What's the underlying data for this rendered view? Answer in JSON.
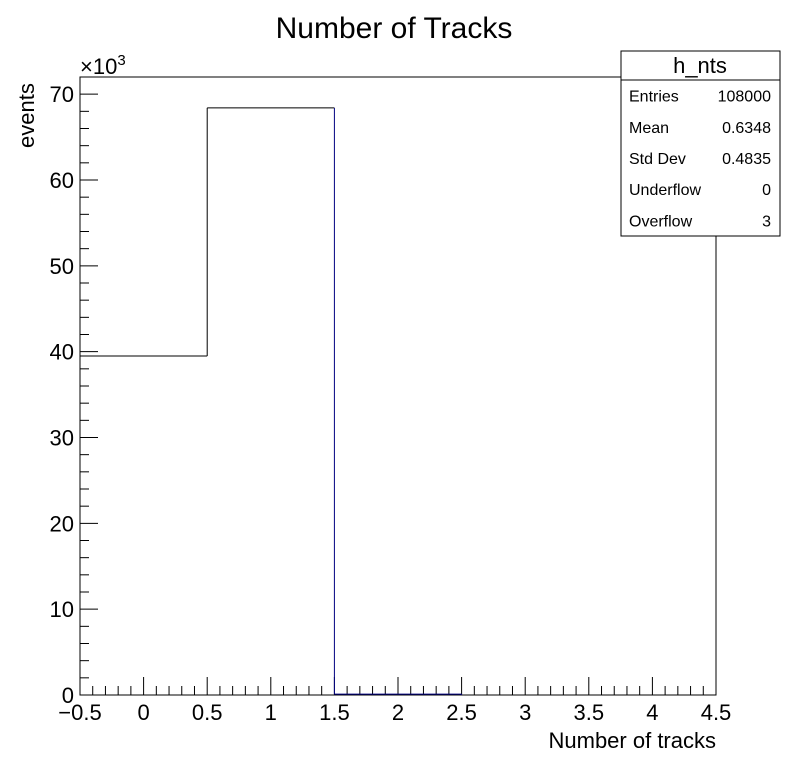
{
  "chart_data": {
    "type": "bar",
    "title": "Number of Tracks",
    "xlabel": "Number of tracks",
    "ylabel": "events",
    "y_multiplier": {
      "base": "×10",
      "exponent": "3"
    },
    "xlim": [
      -0.5,
      4.5
    ],
    "ylim": [
      0,
      72
    ],
    "x_ticks": [
      -0.5,
      0,
      0.5,
      1,
      1.5,
      2,
      2.5,
      3,
      3.5,
      4,
      4.5
    ],
    "x_tick_labels": [
      "−0.5",
      "0",
      "0.5",
      "1",
      "1.5",
      "2",
      "2.5",
      "3",
      "3.5",
      "4",
      "4.5"
    ],
    "y_ticks": [
      0,
      10,
      20,
      30,
      40,
      50,
      60,
      70
    ],
    "y_tick_labels": [
      "0",
      "10",
      "20",
      "30",
      "40",
      "50",
      "60",
      "70"
    ],
    "bins": [
      {
        "low": -0.5,
        "high": 0.5,
        "value": 39.5
      },
      {
        "low": 0.5,
        "high": 1.5,
        "value": 68.4
      },
      {
        "low": 1.5,
        "high": 2.5,
        "value": 0.1
      },
      {
        "low": 2.5,
        "high": 3.5,
        "value": 0
      },
      {
        "low": 3.5,
        "high": 4.5,
        "value": 0
      }
    ],
    "line_color": "#000000",
    "accent_color": "#000080",
    "grid": false
  },
  "stats_box": {
    "title": "h_nts",
    "rows": [
      {
        "name": "Entries",
        "value": "108000"
      },
      {
        "name": "Mean",
        "value": "0.6348"
      },
      {
        "name": "Std Dev",
        "value": "0.4835"
      },
      {
        "name": "Underflow",
        "value": "0"
      },
      {
        "name": "Overflow",
        "value": "3"
      }
    ]
  }
}
